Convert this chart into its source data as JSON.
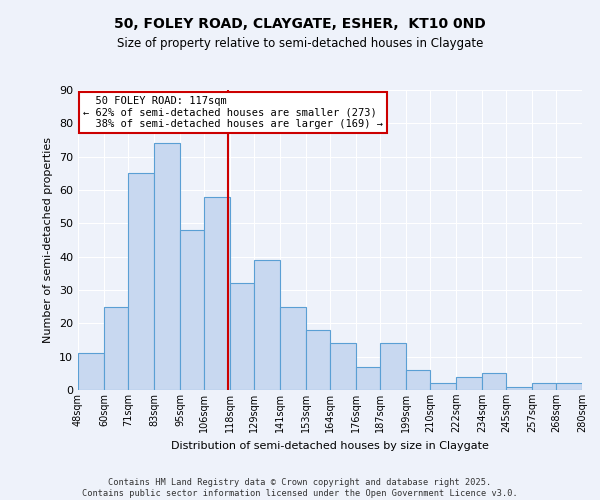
{
  "title": "50, FOLEY ROAD, CLAYGATE, ESHER,  KT10 0ND",
  "subtitle": "Size of property relative to semi-detached houses in Claygate",
  "xlabel": "Distribution of semi-detached houses by size in Claygate",
  "ylabel": "Number of semi-detached properties",
  "bins": [
    48,
    60,
    71,
    83,
    95,
    106,
    118,
    129,
    141,
    153,
    164,
    176,
    187,
    199,
    210,
    222,
    234,
    245,
    257,
    268,
    280
  ],
  "counts": [
    11,
    25,
    65,
    74,
    48,
    58,
    32,
    39,
    25,
    18,
    14,
    7,
    14,
    6,
    2,
    4,
    5,
    1,
    2,
    2
  ],
  "bar_color": "#c8d8f0",
  "bar_edge_color": "#5a9fd4",
  "property_size": 117,
  "property_label": "50 FOLEY ROAD: 117sqm",
  "pct_smaller": 62,
  "pct_smaller_count": 273,
  "pct_larger": 38,
  "pct_larger_count": 169,
  "vline_color": "#cc0000",
  "annotation_box_edge": "#cc0000",
  "ylim": [
    0,
    90
  ],
  "yticks": [
    0,
    10,
    20,
    30,
    40,
    50,
    60,
    70,
    80,
    90
  ],
  "bg_color": "#eef2fa",
  "grid_color": "#ffffff",
  "footer_line1": "Contains HM Land Registry data © Crown copyright and database right 2025.",
  "footer_line2": "Contains public sector information licensed under the Open Government Licence v3.0."
}
